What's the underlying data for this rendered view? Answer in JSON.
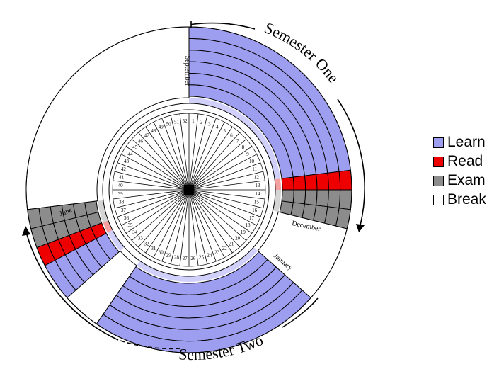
{
  "colors": {
    "learn": "#9e9ef0",
    "read": "#ee0000",
    "exam": "#8c8c8c",
    "break": "#ffffff",
    "learn_pale": "#d0d0fa",
    "read_pale": "#f4a0a0",
    "exam_pale": "#d4d4d4"
  },
  "legend": [
    {
      "label": "Learn",
      "color": "#9e9ef0"
    },
    {
      "label": "Read",
      "color": "#ee0000"
    },
    {
      "label": "Exam",
      "color": "#8c8c8c"
    },
    {
      "label": "Break",
      "color": "#ffffff"
    }
  ],
  "months": {
    "september": "September",
    "december": "December",
    "january": "January",
    "june": "June"
  },
  "semesters": {
    "one": "Semester One",
    "two": "Semester Two"
  },
  "weeks": [
    "1",
    "2",
    "3",
    "4",
    "5",
    "6",
    "7",
    "8",
    "9",
    "10",
    "11",
    "12",
    "13",
    "14",
    "15",
    "16",
    "17",
    "18",
    "19",
    "20",
    "21",
    "22",
    "23",
    "24",
    "25",
    "26",
    "27",
    "28",
    "29",
    "30",
    "31",
    "32",
    "33",
    "34",
    "35",
    "36",
    "37",
    "38",
    "39",
    "40",
    "41",
    "42",
    "43",
    "44",
    "45",
    "46",
    "47",
    "48",
    "49",
    "50",
    "51",
    "52"
  ],
  "ring_count": 6,
  "schedule": [
    {
      "phase": "learn",
      "start_week": 1,
      "end_week": 12
    },
    {
      "phase": "read",
      "start_week": 13,
      "end_week": 13
    },
    {
      "phase": "exam",
      "start_week": 14,
      "end_week": 15
    },
    {
      "phase": "break",
      "start_week": 16,
      "end_week": 19
    },
    {
      "phase": "learn",
      "start_week": 20,
      "end_week": 31
    },
    {
      "phase": "break",
      "start_week": 32,
      "end_week": 33
    },
    {
      "phase": "learn",
      "start_week": 34,
      "end_week": 35
    },
    {
      "phase": "read",
      "start_week": 36,
      "end_week": 36
    },
    {
      "phase": "exam",
      "start_week": 37,
      "end_week": 38
    },
    {
      "phase": "break",
      "start_week": 39,
      "end_week": 52
    }
  ]
}
